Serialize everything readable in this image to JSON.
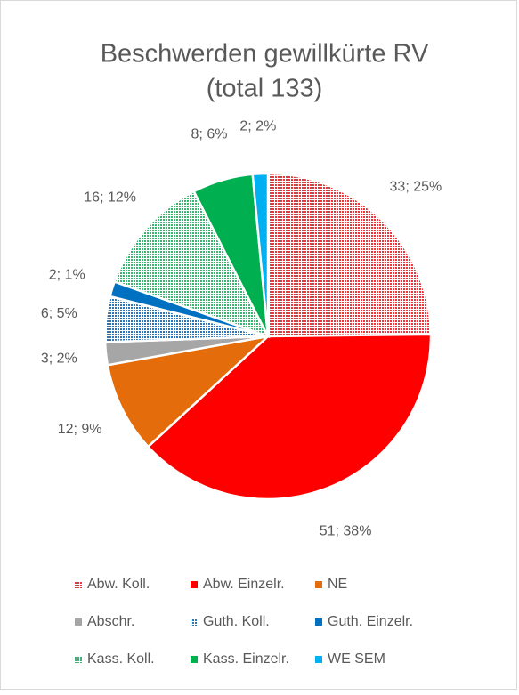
{
  "chart_data": {
    "type": "pie",
    "title": "Beschwerden gewillkürte RV",
    "subtitle": "(total 133)",
    "categories": [
      "Abw. Koll.",
      "Abw. Einzelr.",
      "NE",
      "Abschr.",
      "Guth. Koll.",
      "Guth. Einzelr.",
      "Kass. Koll.",
      "Kass. Einzelr.",
      "WE SEM"
    ],
    "values": [
      33,
      51,
      12,
      3,
      6,
      2,
      16,
      8,
      2
    ],
    "value_labels": [
      "33; 25%",
      "51; 38%",
      "12; 9%",
      "3; 2%",
      "6; 5%",
      "2; 1%",
      "16; 12%",
      "8; 6%",
      "2; 2%"
    ],
    "colors": [
      "#e8383d",
      "#ff0000",
      "#e46c0a",
      "#a6a6a6",
      "#2e75b6",
      "#0070c0",
      "#3cb371",
      "#00b050",
      "#00b0f0"
    ],
    "patterned": [
      true,
      false,
      false,
      false,
      true,
      false,
      true,
      false,
      false
    ],
    "legend": "bottom"
  }
}
